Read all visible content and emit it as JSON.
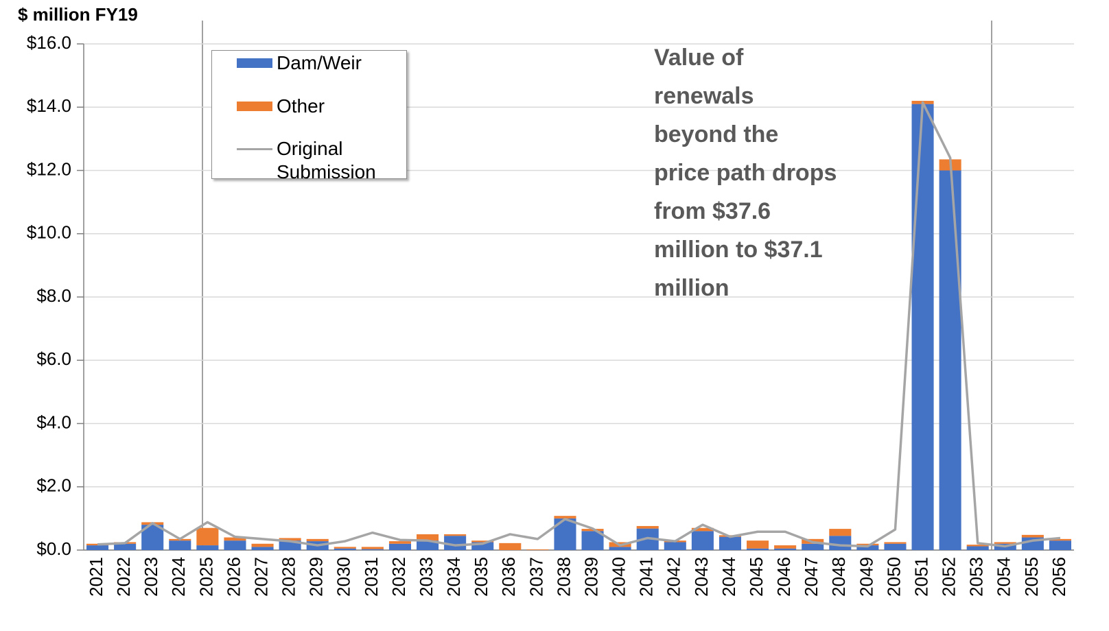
{
  "chart_data": {
    "type": "bar",
    "y_axis_label": "$ million  FY19",
    "annotation": [
      "Value of",
      "renewals",
      "beyond the",
      "price path drops",
      "from $37.6",
      "million to $37.1",
      "million"
    ],
    "categories": [
      "2021",
      "2022",
      "2023",
      "2024",
      "2025",
      "2026",
      "2027",
      "2028",
      "2029",
      "2030",
      "2031",
      "2032",
      "2033",
      "2034",
      "2035",
      "2036",
      "2037",
      "2038",
      "2039",
      "2040",
      "2041",
      "2042",
      "2043",
      "2044",
      "2045",
      "2046",
      "2047",
      "2048",
      "2049",
      "2050",
      "2051",
      "2052",
      "2053",
      "2054",
      "2055",
      "2056"
    ],
    "series": [
      {
        "name": "Dam/Weir",
        "color": "#4472c4",
        "type": "bar",
        "values": [
          0.15,
          0.2,
          0.8,
          0.3,
          0.15,
          0.3,
          0.1,
          0.3,
          0.28,
          0.05,
          0.03,
          0.2,
          0.3,
          0.45,
          0.25,
          0.0,
          0.0,
          1.0,
          0.6,
          0.1,
          0.68,
          0.25,
          0.6,
          0.42,
          0.05,
          0.05,
          0.2,
          0.45,
          0.15,
          0.2,
          14.1,
          12.0,
          0.12,
          0.2,
          0.4,
          0.3
        ]
      },
      {
        "name": "Other",
        "color": "#ed7d31",
        "type": "bar",
        "values": [
          0.05,
          0.05,
          0.08,
          0.05,
          0.55,
          0.1,
          0.1,
          0.08,
          0.07,
          0.05,
          0.07,
          0.08,
          0.2,
          0.05,
          0.05,
          0.22,
          0.02,
          0.08,
          0.07,
          0.15,
          0.08,
          0.05,
          0.1,
          0.05,
          0.25,
          0.1,
          0.15,
          0.22,
          0.05,
          0.05,
          0.1,
          0.35,
          0.05,
          0.05,
          0.08,
          0.05
        ]
      },
      {
        "name": "Original Submission",
        "color": "#a5a5a5",
        "type": "line",
        "values": [
          0.18,
          0.22,
          0.85,
          0.35,
          0.88,
          0.42,
          0.35,
          0.28,
          0.15,
          0.28,
          0.55,
          0.32,
          0.3,
          0.15,
          0.2,
          0.5,
          0.35,
          0.98,
          0.68,
          0.15,
          0.38,
          0.28,
          0.8,
          0.42,
          0.58,
          0.58,
          0.25,
          0.15,
          0.12,
          0.65,
          14.15,
          12.4,
          0.22,
          0.12,
          0.3,
          0.38
        ]
      }
    ],
    "ylim": [
      0,
      16
    ],
    "yticks": [
      {
        "value": 0,
        "label": "$0.0"
      },
      {
        "value": 2,
        "label": "$2.0"
      },
      {
        "value": 4,
        "label": "$4.0"
      },
      {
        "value": 6,
        "label": "$6.0"
      },
      {
        "value": 8,
        "label": "$8.0"
      },
      {
        "value": 10,
        "label": "$10.0"
      },
      {
        "value": 12,
        "label": "$12.0"
      },
      {
        "value": 14,
        "label": "$14.0"
      },
      {
        "value": 16,
        "label": "$16.0"
      }
    ],
    "grid": true,
    "stacked": true,
    "legend": "upper left"
  }
}
